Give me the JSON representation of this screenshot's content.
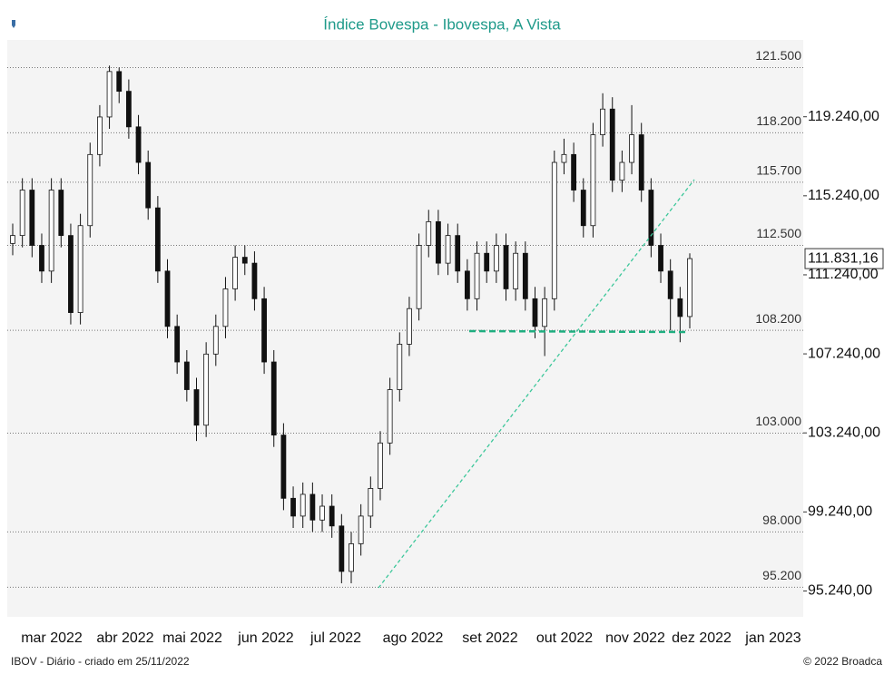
{
  "chart_data": {
    "type": "candlestick",
    "title": "Índice Bovespa - Ibovespa, A Vista",
    "footer_left": "IBOV - Diário - criado em 25/11/2022",
    "footer_right": "© 2022 Broadca",
    "xticks": [
      "mar 2022",
      "abr 2022",
      "mai 2022",
      "jun 2022",
      "jul 2022",
      "ago 2022",
      "set 2022",
      "out 2022",
      "nov 2022",
      "dez 2022",
      "jan 2023"
    ],
    "ylim": [
      93700,
      122900
    ],
    "yticks": [
      {
        "value": 121500,
        "label": "121.500"
      },
      {
        "value": 118200,
        "label": "118.200"
      },
      {
        "value": 115700,
        "label": "115.700"
      },
      {
        "value": 112500,
        "label": "112.500"
      },
      {
        "value": 108200,
        "label": "108.200"
      },
      {
        "value": 103000,
        "label": "103.000"
      },
      {
        "value": 98000,
        "label": "98.000"
      },
      {
        "value": 95200,
        "label": "95.200"
      }
    ],
    "y2ticks": [
      {
        "value": 119240,
        "label": "119.240,00"
      },
      {
        "value": 115240,
        "label": "115.240,00"
      },
      {
        "value": 111240,
        "label": "111.240,00"
      },
      {
        "value": 107240,
        "label": "107.240,00"
      },
      {
        "value": 103240,
        "label": "103.240,00"
      },
      {
        "value": 99240,
        "label": "99.240,00"
      },
      {
        "value": 95240,
        "label": "95.240,00"
      }
    ],
    "grid": true,
    "up_color": "#ffffff",
    "down_color": "#111111",
    "open": [
      112600,
      113000,
      115300,
      112500,
      111200,
      115300,
      113000,
      109100,
      113500,
      117100,
      119000,
      121300,
      120300,
      118500,
      116700,
      114400,
      111200,
      108400,
      106600,
      105200,
      103400,
      107000,
      108400,
      110300,
      111900,
      111600,
      109800,
      106600,
      102900,
      99700,
      98800,
      99900,
      98600,
      99300,
      98300,
      96000,
      97400,
      98800,
      100200,
      102500,
      105200,
      107500,
      109300,
      112500,
      113700,
      111600,
      113000,
      111200,
      109800,
      112100,
      111200,
      112500,
      110300,
      112100,
      109800,
      108400,
      109800,
      116700,
      117100,
      115300,
      113500,
      118100,
      119400,
      115800,
      116700,
      118100,
      115300,
      112500,
      111200,
      109800,
      108900
    ],
    "high": [
      113600,
      115900,
      115900,
      113100,
      115900,
      115900,
      113600,
      114100,
      117700,
      119600,
      121600,
      121500,
      120900,
      119100,
      117300,
      115000,
      111800,
      109000,
      107200,
      105800,
      107600,
      109000,
      110900,
      112500,
      112500,
      112200,
      110400,
      107200,
      103500,
      100300,
      100500,
      100500,
      99900,
      99900,
      98900,
      98000,
      99400,
      100800,
      103100,
      105800,
      108100,
      109900,
      113100,
      114300,
      114300,
      113600,
      113600,
      111800,
      112700,
      112700,
      113100,
      113100,
      112700,
      112700,
      110400,
      110400,
      117300,
      117900,
      117700,
      115900,
      118700,
      120200,
      120000,
      117300,
      119600,
      118700,
      115900,
      113100,
      111800,
      110400,
      112100
    ],
    "low": [
      112000,
      112400,
      111900,
      110600,
      110600,
      112400,
      108500,
      108500,
      112900,
      116500,
      118400,
      119700,
      117900,
      116100,
      113800,
      110600,
      107800,
      106000,
      104600,
      102600,
      102800,
      106400,
      107800,
      109700,
      111000,
      109200,
      106000,
      102300,
      99100,
      98200,
      98200,
      98000,
      98000,
      97700,
      95400,
      95400,
      96800,
      98200,
      99600,
      101900,
      104600,
      106900,
      108700,
      111900,
      111000,
      111000,
      110600,
      109200,
      109200,
      110600,
      110600,
      109700,
      109700,
      109200,
      107800,
      106900,
      109200,
      116100,
      114700,
      112900,
      112900,
      117500,
      115200,
      115200,
      116100,
      114700,
      111900,
      110600,
      108200,
      107600,
      108300
    ],
    "close": [
      113000,
      115300,
      112500,
      111200,
      115300,
      113000,
      109100,
      113500,
      117100,
      119000,
      121300,
      120300,
      118500,
      116700,
      114400,
      111200,
      108400,
      106600,
      105200,
      103400,
      107000,
      108400,
      110300,
      111900,
      111600,
      109800,
      106600,
      102900,
      99700,
      98800,
      99900,
      98600,
      99300,
      98300,
      96000,
      97400,
      98800,
      100200,
      102500,
      105200,
      107500,
      109300,
      112500,
      113700,
      111600,
      113000,
      111200,
      109800,
      112100,
      111200,
      112500,
      110300,
      112100,
      109800,
      108400,
      109800,
      116700,
      117100,
      115300,
      113500,
      118100,
      119400,
      115800,
      116700,
      118100,
      115300,
      112500,
      111200,
      109800,
      108900,
      111831.16
    ],
    "close_labels": {
      "70": "111.831,16"
    }
  }
}
